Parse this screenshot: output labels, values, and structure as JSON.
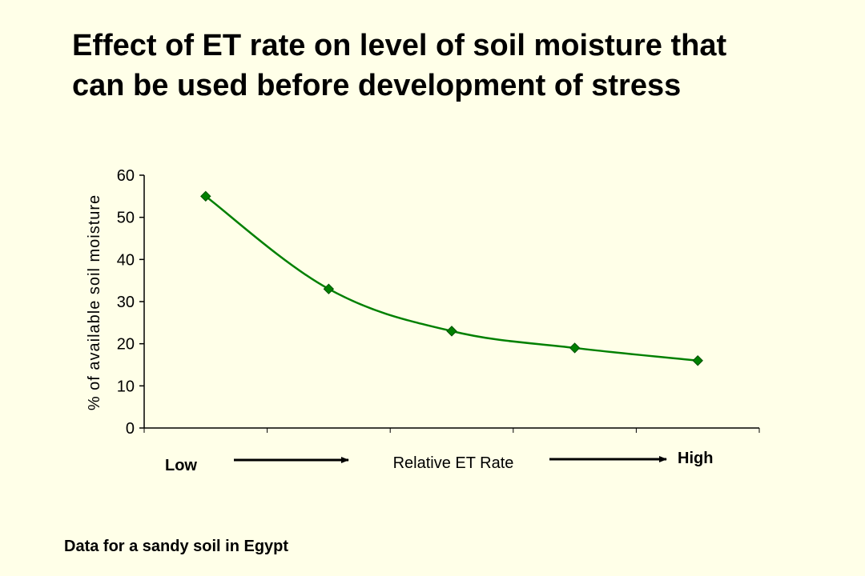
{
  "title_lines": [
    "Effect of ET rate on level of soil moisture that",
    "can be used before development of stress"
  ],
  "footnote": "Data for a sandy soil in Egypt",
  "colors": {
    "background": "#FFFFE8",
    "series": "#008000",
    "axis": "#000000"
  },
  "chart_data": {
    "type": "line",
    "title": "",
    "xlabel": "Relative ET Rate",
    "ylabel": "% of available soil moisture",
    "x_low_label": "Low",
    "x_high_label": "High",
    "x": [
      1,
      2,
      3,
      4,
      5
    ],
    "series": [
      {
        "values": [
          55,
          33,
          23,
          19,
          16
        ]
      }
    ],
    "ylim": [
      0,
      60
    ],
    "yticks": [
      0,
      10,
      20,
      30,
      40,
      50,
      60
    ],
    "grid": false,
    "legend": "none",
    "marker": "diamond"
  }
}
